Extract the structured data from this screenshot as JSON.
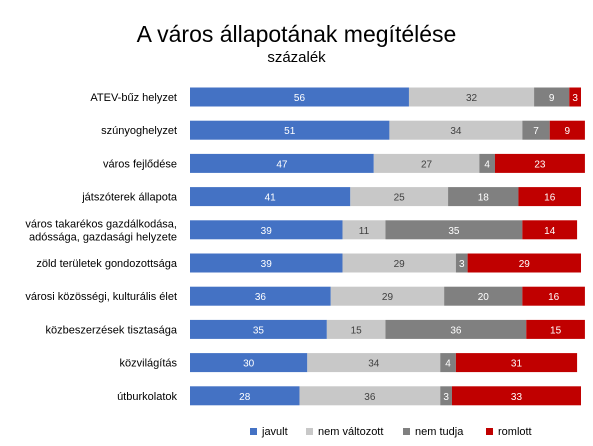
{
  "chart_data": {
    "type": "bar",
    "stacked": "horizontal-percent",
    "title": "A város állapotának megítélése",
    "subtitle": "százalék",
    "xlim": [
      0,
      100
    ],
    "grid": false,
    "legend_position": "bottom",
    "categories": [
      [
        "ATEV-bűz helyzet"
      ],
      [
        "szúnyoghelyzet"
      ],
      [
        "város fejlődése"
      ],
      [
        "játszóterek állapota"
      ],
      [
        "város takarékos gazdálkodása,",
        "adóssága, gazdasági helyzete"
      ],
      [
        "zöld területek gondozottsága"
      ],
      [
        "városi közösségi, kulturális élet"
      ],
      [
        "közbeszerzések tisztasága"
      ],
      [
        "közvilágítás"
      ],
      [
        "útburkolatok"
      ]
    ],
    "series": [
      {
        "name": "javult",
        "color": "#4472C4",
        "label_color": "#ffffff",
        "values": [
          56,
          51,
          47,
          41,
          39,
          39,
          36,
          35,
          30,
          28
        ]
      },
      {
        "name": "nem változott",
        "color": "#C8C8C8",
        "label_color": "#404040",
        "values": [
          32,
          34,
          27,
          25,
          11,
          29,
          29,
          15,
          34,
          36
        ]
      },
      {
        "name": "nem tudja",
        "color": "#808080",
        "label_color": "#ffffff",
        "values": [
          9,
          7,
          4,
          18,
          35,
          3,
          20,
          36,
          4,
          3
        ]
      },
      {
        "name": "romlott",
        "color": "#C00000",
        "label_color": "#ffffff",
        "values": [
          3,
          9,
          23,
          16,
          14,
          29,
          16,
          15,
          31,
          33
        ]
      }
    ]
  }
}
